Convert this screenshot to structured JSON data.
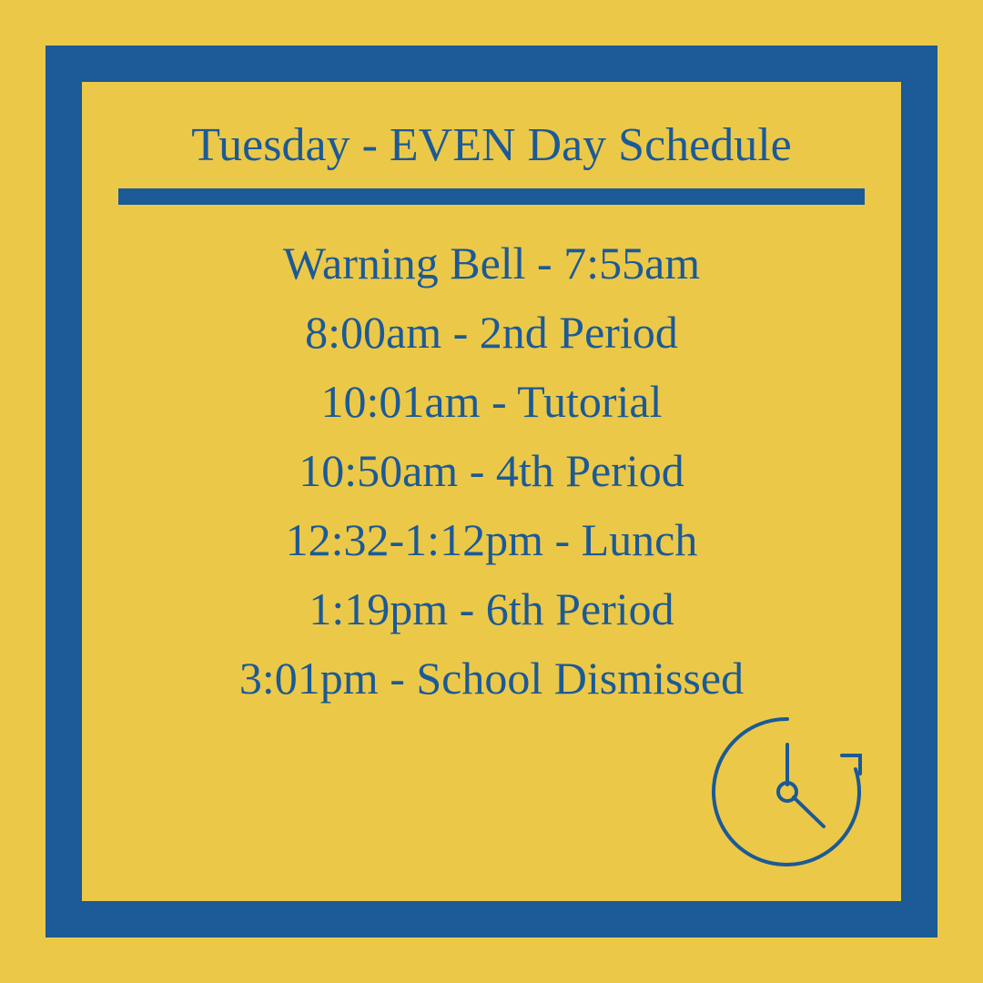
{
  "colors": {
    "background": "#ecc848",
    "border": "#1b5a96",
    "text": "#1b5a96",
    "divider": "#1b5a96",
    "icon": "#1b5a96"
  },
  "layout": {
    "border_width": 40,
    "title_fontsize": 52,
    "body_fontsize": 50
  },
  "title": "Tuesday - EVEN Day Schedule",
  "schedule": [
    "Warning Bell - 7:55am",
    "8:00am - 2nd Period",
    "10:01am - Tutorial",
    "10:50am - 4th Period",
    "12:32-1:12pm - Lunch",
    "1:19pm - 6th Period",
    "3:01pm - School Dismissed"
  ]
}
